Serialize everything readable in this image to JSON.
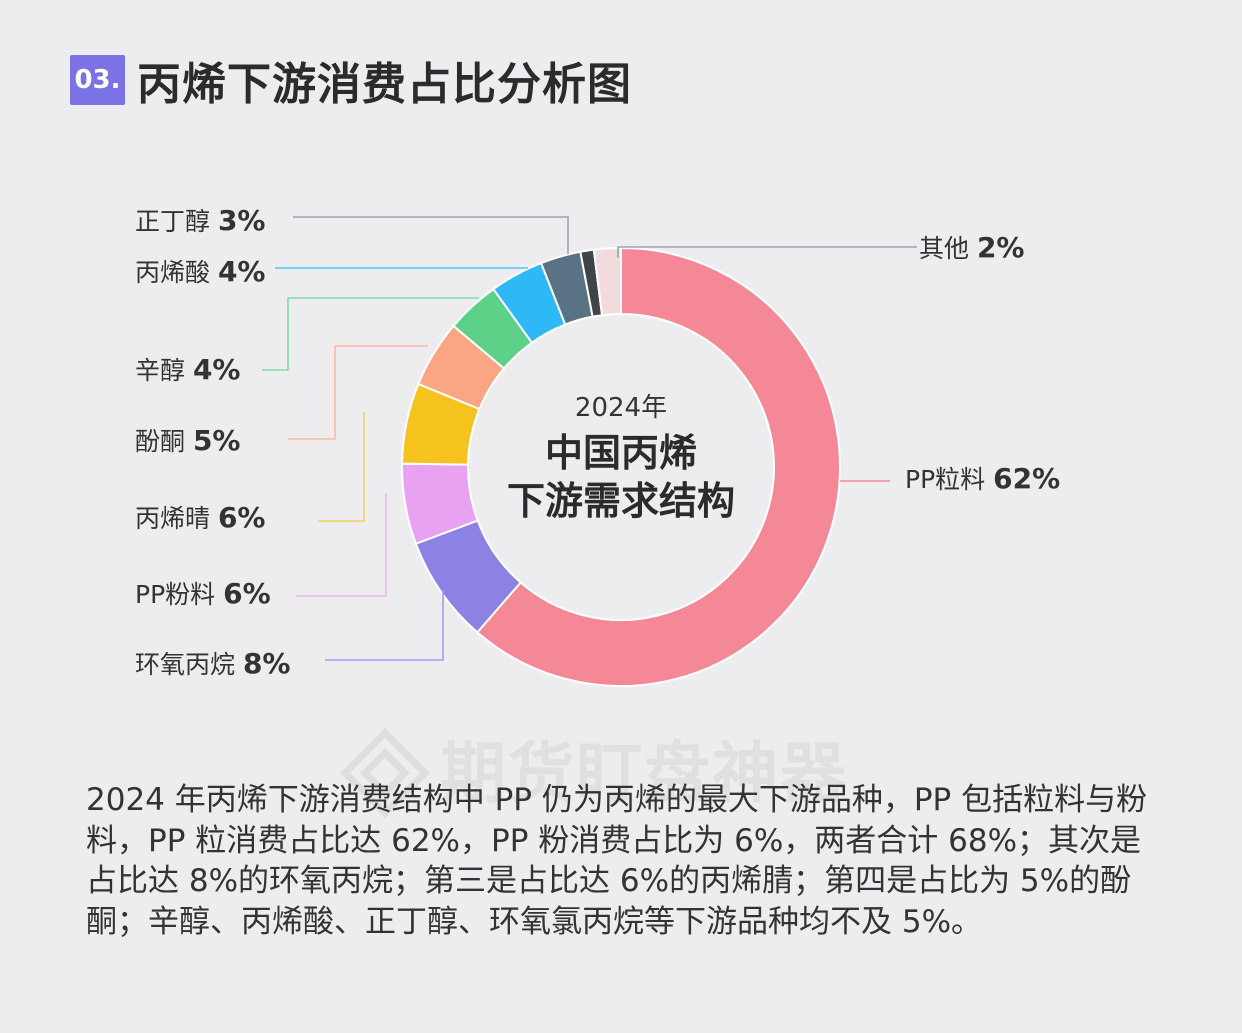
{
  "header": {
    "number": "03.",
    "title": "丙烯下游消费占比分析图"
  },
  "watermark": "期货盯盘神器",
  "chart_data": {
    "type": "pie",
    "donut": true,
    "center_text": {
      "line1": "2024年",
      "line2": "中国丙烯",
      "line3": "下游需求结构"
    },
    "slices": [
      {
        "label": "PP粒料",
        "value": 62,
        "value_text": "62%",
        "color": "#f48896"
      },
      {
        "label": "环氧丙烷",
        "value": 8,
        "value_text": "8%",
        "color": "#8c82e4"
      },
      {
        "label": "PP粉料",
        "value": 6,
        "value_text": "6%",
        "color": "#e9a2f2"
      },
      {
        "label": "丙烯晴",
        "value": 6,
        "value_text": "6%",
        "color": "#f5c21e"
      },
      {
        "label": "酚酮",
        "value": 5,
        "value_text": "5%",
        "color": "#fba683"
      },
      {
        "label": "辛醇",
        "value": 4,
        "value_text": "4%",
        "color": "#5dd188"
      },
      {
        "label": "丙烯酸",
        "value": 4,
        "value_text": "4%",
        "color": "#2eb8f5"
      },
      {
        "label": "正丁醇",
        "value": 3,
        "value_text": "3%",
        "color": "#5a7384"
      },
      {
        "label": "",
        "value": 1,
        "value_text": "",
        "color": "#404448"
      },
      {
        "label": "其他",
        "value": 2,
        "value_text": "2%",
        "color": "#f3dadd"
      }
    ],
    "leader_colors": {
      "PP粒料": "#f48896",
      "环氧丙烷": "#a59cf0",
      "PP粉料": "#edb8f5",
      "丙烯晴": "#f5d05a",
      "酚酮": "#fbb9a0",
      "辛醇": "#7fdca2",
      "丙烯酸": "#52c6f7",
      "正丁醇": "#9aa6ae",
      "其他": "#9aa6ae"
    }
  },
  "description": "2024 年丙烯下游消费结构中 PP 仍为丙烯的最大下游品种，PP 包括粒料与粉料，PP 粒消费占比达 62%，PP 粉消费占比为 6%，两者合计 68%；其次是占比达 8%的环氧丙烷；第三是占比达 6%的丙烯腈；第四是占比为 5%的酚酮；辛醇、丙烯酸、正丁醇、环氧氯丙烷等下游品种均不及 5%。"
}
